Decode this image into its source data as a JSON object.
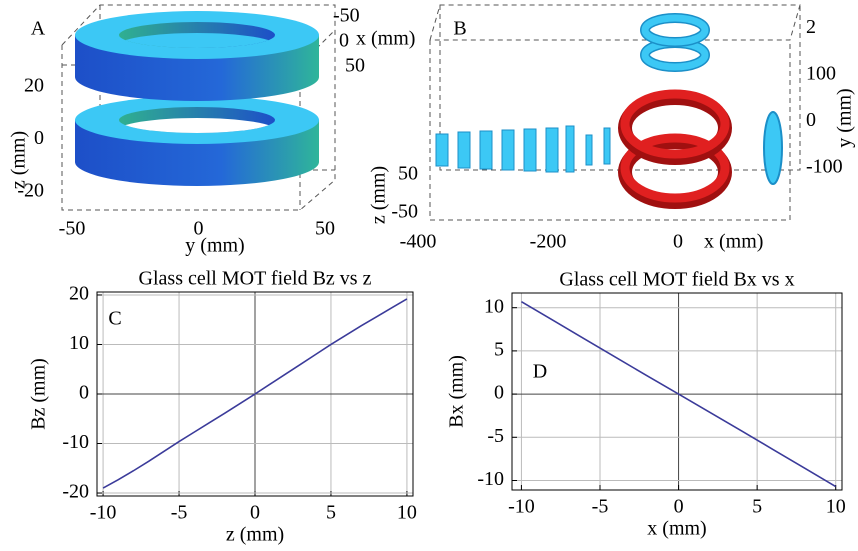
{
  "chart_data": [
    {
      "type": "coils3d",
      "panel": "A",
      "axes": [
        {
          "label": "y (mm)",
          "ticks": [
            -50,
            0,
            50
          ]
        },
        {
          "label": "z (mm)",
          "ticks": [
            -20,
            0,
            20
          ]
        },
        {
          "label": "x (mm)",
          "ticks": [
            -50,
            0,
            50
          ]
        }
      ]
    },
    {
      "type": "coils3d",
      "panel": "B",
      "axes": [
        {
          "label": "x (mm)",
          "ticks": [
            -400,
            -200,
            0
          ]
        },
        {
          "label": "y (mm)",
          "ticks": [
            -100,
            0,
            100,
            {
              "value": 200,
              "label": "2"
            }
          ]
        },
        {
          "label": "z (mm)",
          "ticks": [
            -50,
            50
          ]
        }
      ]
    },
    {
      "type": "line",
      "panel": "C",
      "title": "Glass cell MOT field Bz vs z",
      "xlabel": "z (mm)",
      "ylabel": "Bz (mm)",
      "color": "#3b3b9a",
      "grid": true,
      "x": [
        -10,
        -9,
        -8,
        -7,
        -6,
        -5,
        -4,
        -3,
        -2,
        -1,
        0,
        1,
        2,
        3,
        4,
        5,
        6,
        7,
        8,
        9,
        10
      ],
      "values": [
        -19,
        -17.3,
        -15.5,
        -13.6,
        -11.6,
        -9.6,
        -7.7,
        -5.8,
        -3.9,
        -1.95,
        0,
        2,
        4,
        6,
        8,
        10,
        11.9,
        13.8,
        15.6,
        17.4,
        19.2
      ],
      "xlim": [
        -10.4,
        10.4
      ],
      "ylim": [
        -20.6,
        20.6
      ],
      "xticks": [
        -10,
        -5,
        0,
        5,
        10
      ],
      "yticks": [
        -20,
        -10,
        0,
        10,
        20
      ]
    },
    {
      "type": "line",
      "panel": "D",
      "title": "Glass cell MOT field Bx vs x",
      "xlabel": "x (mm)",
      "ylabel": "Bx (mm)",
      "color": "#3b3b9a",
      "grid": true,
      "x": [
        -10,
        -8,
        -6,
        -4,
        -2,
        0,
        2,
        4,
        6,
        8,
        10
      ],
      "values": [
        10.7,
        8.55,
        6.4,
        4.25,
        2.12,
        0,
        -2.12,
        -4.25,
        -6.4,
        -8.55,
        -10.7
      ],
      "xlim": [
        -10.6,
        10.4
      ],
      "ylim": [
        -11.1,
        11.7
      ],
      "xticks": [
        -10,
        -5,
        0,
        5,
        10
      ],
      "yticks": [
        -10,
        -5,
        0,
        5,
        10
      ]
    }
  ]
}
